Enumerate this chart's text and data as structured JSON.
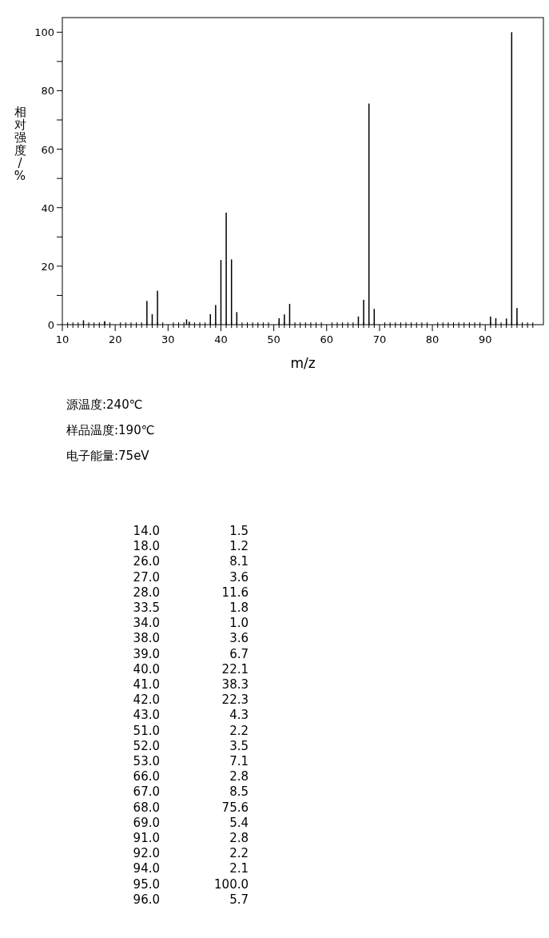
{
  "chart_data": [
    {
      "type": "bar",
      "xlabel": "m/z",
      "ylabel": "相对强度/%",
      "x": [
        14.0,
        18.0,
        26.0,
        27.0,
        28.0,
        33.5,
        34.0,
        38.0,
        39.0,
        40.0,
        41.0,
        42.0,
        43.0,
        51.0,
        52.0,
        53.0,
        66.0,
        67.0,
        68.0,
        69.0,
        91.0,
        92.0,
        94.0,
        95.0,
        96.0
      ],
      "values": [
        1.5,
        1.2,
        8.1,
        3.6,
        11.6,
        1.8,
        1.0,
        3.6,
        6.7,
        22.1,
        38.3,
        22.3,
        4.3,
        2.2,
        3.5,
        7.1,
        2.8,
        8.5,
        75.6,
        5.4,
        2.8,
        2.2,
        2.1,
        100.0,
        5.7
      ],
      "color": "#000000",
      "xlim": [
        10,
        101
      ],
      "ylim": [
        0,
        105
      ],
      "xticks": [
        10,
        {
          "value": 11,
          "label": null
        },
        {
          "value": 12,
          "label": null
        },
        {
          "value": 13,
          "label": null
        },
        {
          "value": 14,
          "label": null
        },
        {
          "value": 15,
          "label": null
        },
        {
          "value": 16,
          "label": null
        },
        {
          "value": 17,
          "label": null
        },
        {
          "value": 18,
          "label": null
        },
        {
          "value": 19,
          "label": null
        },
        20,
        {
          "value": 21,
          "label": null
        },
        {
          "value": 22,
          "label": null
        },
        {
          "value": 23,
          "label": null
        },
        {
          "value": 24,
          "label": null
        },
        {
          "value": 25,
          "label": null
        },
        {
          "value": 26,
          "label": null
        },
        {
          "value": 27,
          "label": null
        },
        {
          "value": 28,
          "label": null
        },
        {
          "value": 29,
          "label": null
        },
        30,
        {
          "value": 31,
          "label": null
        },
        {
          "value": 32,
          "label": null
        },
        {
          "value": 33,
          "label": null
        },
        {
          "value": 34,
          "label": null
        },
        {
          "value": 35,
          "label": null
        },
        {
          "value": 36,
          "label": null
        },
        {
          "value": 37,
          "label": null
        },
        {
          "value": 38,
          "label": null
        },
        {
          "value": 39,
          "label": null
        },
        40,
        {
          "value": 41,
          "label": null
        },
        {
          "value": 42,
          "label": null
        },
        {
          "value": 43,
          "label": null
        },
        {
          "value": 44,
          "label": null
        },
        {
          "value": 45,
          "label": null
        },
        {
          "value": 46,
          "label": null
        },
        {
          "value": 47,
          "label": null
        },
        {
          "value": 48,
          "label": null
        },
        {
          "value": 49,
          "label": null
        },
        50,
        {
          "value": 51,
          "label": null
        },
        {
          "value": 52,
          "label": null
        },
        {
          "value": 53,
          "label": null
        },
        {
          "value": 54,
          "label": null
        },
        {
          "value": 55,
          "label": null
        },
        {
          "value": 56,
          "label": null
        },
        {
          "value": 57,
          "label": null
        },
        {
          "value": 58,
          "label": null
        },
        {
          "value": 59,
          "label": null
        },
        60,
        {
          "value": 61,
          "label": null
        },
        {
          "value": 62,
          "label": null
        },
        {
          "value": 63,
          "label": null
        },
        {
          "value": 64,
          "label": null
        },
        {
          "value": 65,
          "label": null
        },
        {
          "value": 66,
          "label": null
        },
        {
          "value": 67,
          "label": null
        },
        {
          "value": 68,
          "label": null
        },
        {
          "value": 69,
          "label": null
        },
        70,
        {
          "value": 71,
          "label": null
        },
        {
          "value": 72,
          "label": null
        },
        {
          "value": 73,
          "label": null
        },
        {
          "value": 74,
          "label": null
        },
        {
          "value": 75,
          "label": null
        },
        {
          "value": 76,
          "label": null
        },
        {
          "value": 77,
          "label": null
        },
        {
          "value": 78,
          "label": null
        },
        {
          "value": 79,
          "label": null
        },
        80,
        {
          "value": 81,
          "label": null
        },
        {
          "value": 82,
          "label": null
        },
        {
          "value": 83,
          "label": null
        },
        {
          "value": 84,
          "label": null
        },
        {
          "value": 85,
          "label": null
        },
        {
          "value": 86,
          "label": null
        },
        {
          "value": 87,
          "label": null
        },
        {
          "value": 88,
          "label": null
        },
        {
          "value": 89,
          "label": null
        },
        90,
        {
          "value": 91,
          "label": null
        },
        {
          "value": 92,
          "label": null
        },
        {
          "value": 93,
          "label": null
        },
        {
          "value": 94,
          "label": null
        },
        {
          "value": 95,
          "label": null
        },
        {
          "value": 96,
          "label": null
        },
        {
          "value": 97,
          "label": null
        },
        {
          "value": 98,
          "label": null
        },
        {
          "value": 99,
          "label": null
        }
      ],
      "yticks": [
        0,
        {
          "value": 10,
          "label": null
        },
        20,
        {
          "value": 30,
          "label": null
        },
        40,
        {
          "value": 50,
          "label": null
        },
        60,
        {
          "value": 70,
          "label": null
        },
        80,
        {
          "value": 90,
          "label": null
        },
        100
      ],
      "annotations": [
        "源温度:240℃",
        "样品温度:190℃",
        "电子能量:75eV"
      ]
    },
    {
      "type": "other",
      "annotations": [
        "14.0",
        "1.5",
        "18.0",
        "1.2",
        "26.0",
        "8.1",
        "27.0",
        "3.6",
        "28.0",
        "11.6",
        "33.5",
        "1.8",
        "34.0",
        "1.0",
        "38.0",
        "3.6",
        "39.0",
        "6.7",
        "40.0",
        "22.1",
        "41.0",
        "38.3",
        "42.0",
        "22.3",
        "43.0",
        "4.3",
        "51.0",
        "2.2",
        "52.0",
        "3.5",
        "53.0",
        "7.1",
        "66.0",
        "2.8",
        "67.0",
        "8.5",
        "68.0",
        "75.6",
        "69.0",
        "5.4",
        "91.0",
        "2.8",
        "92.0",
        "2.2",
        "94.0",
        "2.1",
        "95.0",
        "100.0",
        "96.0",
        "5.7"
      ]
    }
  ]
}
